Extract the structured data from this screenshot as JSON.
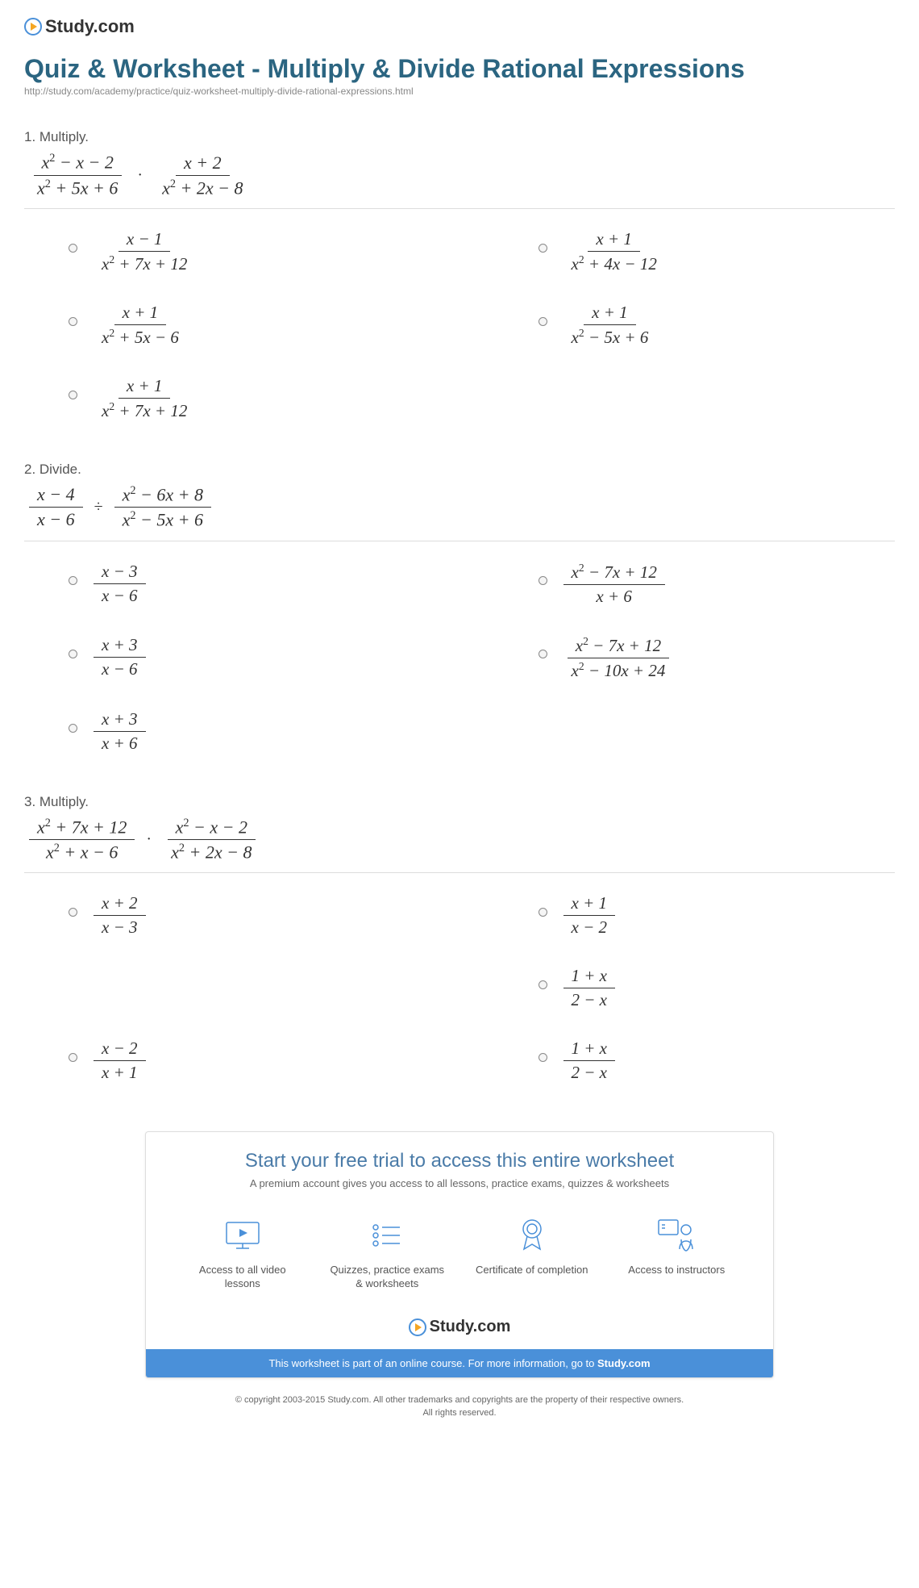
{
  "brand": "Study.com",
  "page_title": "Quiz & Worksheet - Multiply & Divide Rational Expressions",
  "page_url": "http://study.com/academy/practice/quiz-worksheet-multiply-divide-rational-expressions.html",
  "colors": {
    "title": "#2b6581",
    "accent_blue": "#4a90d9",
    "accent_orange": "#f5a623",
    "text": "#333333",
    "muted": "#888888",
    "divider": "#dddddd"
  },
  "questions": [
    {
      "number": "1",
      "verb": "Multiply.",
      "operator": "·",
      "left": {
        "num": "x^2 − x − 2",
        "den": "x^2 + 5x + 6"
      },
      "right": {
        "num": "x + 2",
        "den": "x^2 + 2x − 8"
      },
      "answers": [
        {
          "num": "x − 1",
          "den": "x^2 + 7x + 12"
        },
        {
          "num": "x + 1",
          "den": "x^2 + 4x − 12"
        },
        {
          "num": "x + 1",
          "den": "x^2 + 5x − 6"
        },
        {
          "num": "x + 1",
          "den": "x^2 − 5x + 6"
        },
        {
          "num": "x + 1",
          "den": "x^2 + 7x + 12"
        }
      ]
    },
    {
      "number": "2",
      "verb": "Divide.",
      "operator": "÷",
      "left": {
        "num": "x − 4",
        "den": "x − 6"
      },
      "right": {
        "num": "x^2 − 6x + 8",
        "den": "x^2 − 5x + 6"
      },
      "answers": [
        {
          "num": "x − 3",
          "den": "x − 6"
        },
        {
          "num": "x^2 − 7x + 12",
          "den": "x + 6"
        },
        {
          "num": "x + 3",
          "den": "x − 6"
        },
        {
          "num": "x^2 − 7x + 12",
          "den": "x^2 − 10x + 24"
        },
        {
          "num": "x + 3",
          "den": "x + 6"
        }
      ]
    },
    {
      "number": "3",
      "verb": "Multiply.",
      "operator": "·",
      "left": {
        "num": "x^2 + 7x + 12",
        "den": "x^2 + x − 6"
      },
      "right": {
        "num": "x^2 − x − 2",
        "den": "x^2 + 2x − 8"
      },
      "answers": [
        {
          "num": "x + 2",
          "den": "x − 3"
        },
        {
          "num": "x + 1",
          "den": "x − 2"
        },
        null,
        {
          "num": "1 + x",
          "den": "2 − x"
        },
        {
          "num": "x − 2",
          "den": "x + 1"
        },
        {
          "num": "1 + x",
          "den": "2 − x"
        }
      ]
    }
  ],
  "promo": {
    "title": "Start your free trial to access this entire worksheet",
    "subtitle": "A premium account gives you access to all lessons, practice exams, quizzes & worksheets",
    "items": [
      {
        "icon": "video",
        "label": "Access to all video lessons"
      },
      {
        "icon": "list",
        "label": "Quizzes, practice exams & worksheets"
      },
      {
        "icon": "award",
        "label": "Certificate of completion"
      },
      {
        "icon": "instructor",
        "label": "Access to instructors"
      }
    ],
    "bar_text": "This worksheet is part of an online course. For more information, go to ",
    "bar_link": "Study.com"
  },
  "copyright_line1": "© copyright 2003-2015 Study.com. All other trademarks and copyrights are the property of their respective owners.",
  "copyright_line2": "All rights reserved."
}
